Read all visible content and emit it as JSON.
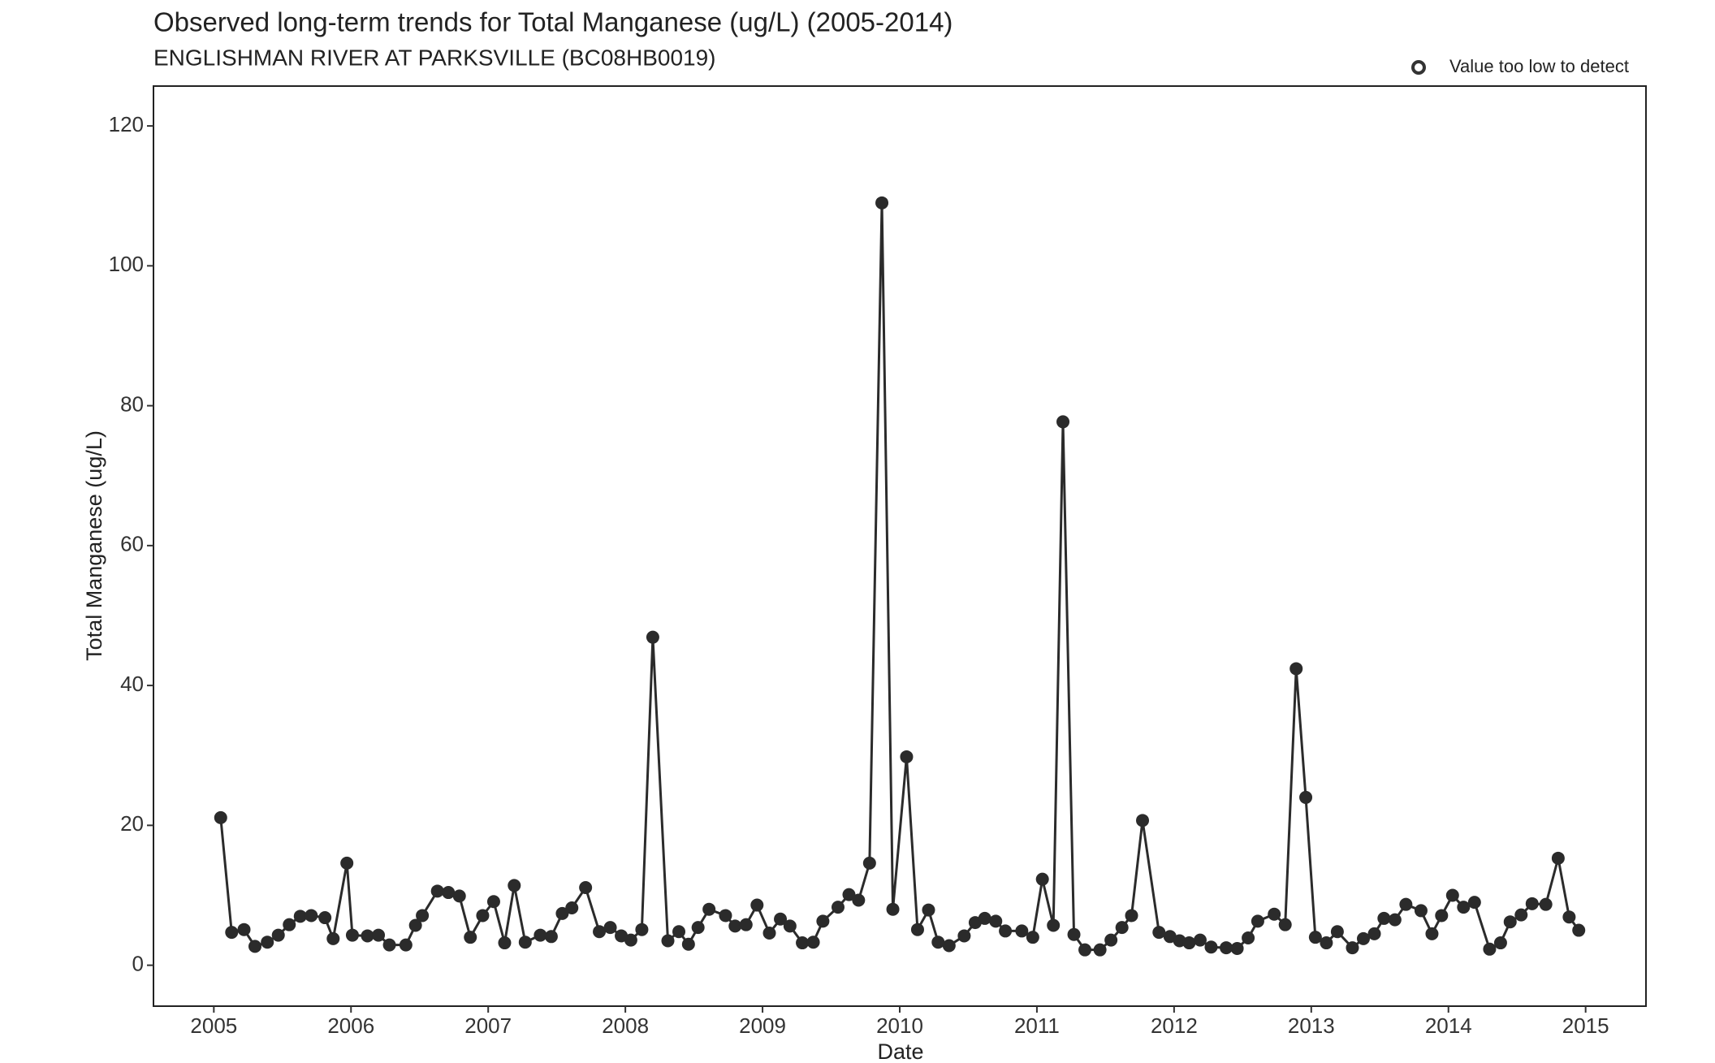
{
  "chart_data": {
    "type": "line",
    "title": "Observed long-term trends for Total Manganese (ug/L) (2005-2014)",
    "subtitle": "ENGLISHMAN RIVER AT PARKSVILLE (BC08HB0019)",
    "x_label": "Date",
    "y_label": "Total Manganese (ug/L)",
    "legend_label": "Value too low to detect",
    "color": "#2b2b2b",
    "xlim": [
      2004.56,
      2015.44
    ],
    "xticks": [
      2005,
      2006,
      2007,
      2008,
      2009,
      2010,
      2011,
      2012,
      2013,
      2014,
      2015
    ],
    "ylim": [
      -5.85,
      125.7
    ],
    "yticks": [
      0,
      20,
      40,
      60,
      80,
      100,
      120
    ],
    "x": [
      2005.05,
      2005.13,
      2005.22,
      2005.3,
      2005.39,
      2005.47,
      2005.55,
      2005.63,
      2005.71,
      2005.81,
      2005.87,
      2005.97,
      2006.01,
      2006.12,
      2006.2,
      2006.28,
      2006.4,
      2006.47,
      2006.52,
      2006.63,
      2006.71,
      2006.79,
      2006.87,
      2006.96,
      2007.04,
      2007.12,
      2007.19,
      2007.27,
      2007.38,
      2007.46,
      2007.54,
      2007.61,
      2007.71,
      2007.81,
      2007.89,
      2007.97,
      2008.04,
      2008.12,
      2008.2,
      2008.31,
      2008.39,
      2008.46,
      2008.53,
      2008.61,
      2008.73,
      2008.8,
      2008.88,
      2008.96,
      2009.05,
      2009.13,
      2009.2,
      2009.29,
      2009.37,
      2009.44,
      2009.55,
      2009.63,
      2009.7,
      2009.78,
      2009.87,
      2009.95,
      2010.05,
      2010.13,
      2010.21,
      2010.28,
      2010.36,
      2010.47,
      2010.55,
      2010.62,
      2010.7,
      2010.77,
      2010.89,
      2010.97,
      2011.04,
      2011.12,
      2011.19,
      2011.27,
      2011.35,
      2011.46,
      2011.54,
      2011.62,
      2011.69,
      2011.77,
      2011.89,
      2011.97,
      2012.04,
      2012.11,
      2012.19,
      2012.27,
      2012.38,
      2012.46,
      2012.54,
      2012.61,
      2012.73,
      2012.81,
      2012.89,
      2012.96,
      2013.03,
      2013.11,
      2013.19,
      2013.3,
      2013.38,
      2013.46,
      2013.53,
      2013.61,
      2013.69,
      2013.8,
      2013.88,
      2013.95,
      2014.03,
      2014.11,
      2014.19,
      2014.3,
      2014.38,
      2014.45,
      2014.53,
      2014.61,
      2014.71,
      2014.8,
      2014.88,
      2014.95
    ],
    "values": [
      21.1,
      4.7,
      5.1,
      2.7,
      3.3,
      4.3,
      5.8,
      7.0,
      7.1,
      6.8,
      3.8,
      14.6,
      4.3,
      4.2,
      4.3,
      2.9,
      2.9,
      5.7,
      7.1,
      10.6,
      10.4,
      9.9,
      4.0,
      7.1,
      9.1,
      3.2,
      11.4,
      3.3,
      4.3,
      4.1,
      7.4,
      8.2,
      11.1,
      4.8,
      5.4,
      4.2,
      3.6,
      5.1,
      46.9,
      3.5,
      4.8,
      3.0,
      5.4,
      8.0,
      7.1,
      5.6,
      5.8,
      8.6,
      4.6,
      6.6,
      5.6,
      3.2,
      3.3,
      6.3,
      8.3,
      10.1,
      9.3,
      14.6,
      109.0,
      8.0,
      29.8,
      5.1,
      7.9,
      3.3,
      2.8,
      4.2,
      6.1,
      6.7,
      6.3,
      4.9,
      4.9,
      4.0,
      12.3,
      5.7,
      77.7,
      4.4,
      2.2,
      2.2,
      3.6,
      5.4,
      7.1,
      20.7,
      4.7,
      4.1,
      3.5,
      3.2,
      3.6,
      2.6,
      2.5,
      2.4,
      3.9,
      6.3,
      7.3,
      5.8,
      42.4,
      24.0,
      4.0,
      3.2,
      4.8,
      2.5,
      3.8,
      4.5,
      6.7,
      6.5,
      8.7,
      7.8,
      4.5,
      7.1,
      10.0,
      8.3,
      9.0,
      2.3,
      3.2,
      6.2,
      7.2,
      8.8,
      8.7,
      15.3,
      6.9,
      5.0
    ]
  }
}
